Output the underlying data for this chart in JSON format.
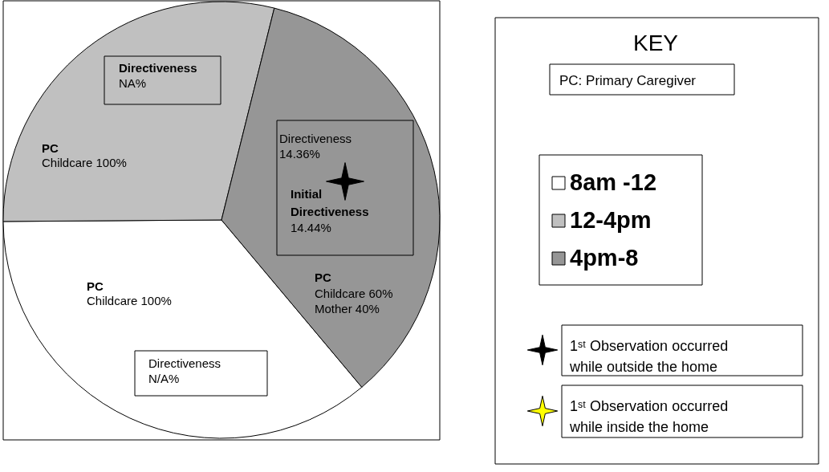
{
  "chart_data": {
    "type": "pie",
    "legend_title": "KEY",
    "categories": [
      "8am -12",
      "12-4pm",
      "4pm-8"
    ],
    "values": [
      36,
      29,
      35
    ],
    "colors": [
      "#ffffff",
      "#c0c0c0",
      "#969696"
    ],
    "legend": "right",
    "annotations": [
      "Directiveness",
      "NA%",
      "PC",
      "Childcare 100%",
      "Directiveness",
      "14.36%",
      "Initial",
      "Directiveness",
      "14.44%",
      "PC",
      "Childcare 60%",
      "Mother  40%",
      "PC",
      "Childcare 100%",
      "Directiveness",
      "N/A%",
      "PC: Primary Caregiver",
      "1ˢᵗ Observation occurred",
      "while outside the home",
      "1ˢᵗ Observation occurred",
      "while inside the home"
    ]
  }
}
